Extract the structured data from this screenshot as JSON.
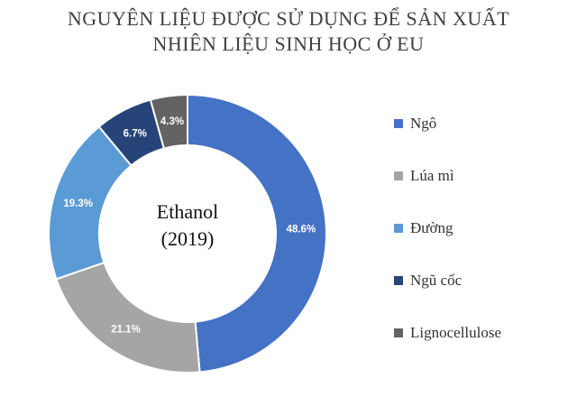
{
  "chart_data": {
    "type": "pie",
    "title": "NGUYÊN LIỆU ĐƯỢC SỬ DỤNG ĐỂ SẢN XUẤT",
    "subtitle": "NHIÊN LIỆU SINH HỌC Ở EU",
    "center_label": [
      "Ethanol",
      "(2019)"
    ],
    "categories": [
      "Ngô",
      "Lúa mì",
      "Đường",
      "Ngũ cốc",
      "Lignocellulose"
    ],
    "values": [
      48.6,
      21.1,
      19.3,
      6.7,
      4.3
    ],
    "value_labels": [
      "48.6%",
      "21.1%",
      "19.3%",
      "6.7%",
      "4.3%"
    ],
    "colors": [
      "#4472C4",
      "#A5A5A5",
      "#5B9BD5",
      "#264478",
      "#636363"
    ],
    "donut": true,
    "legend_position": "right"
  }
}
